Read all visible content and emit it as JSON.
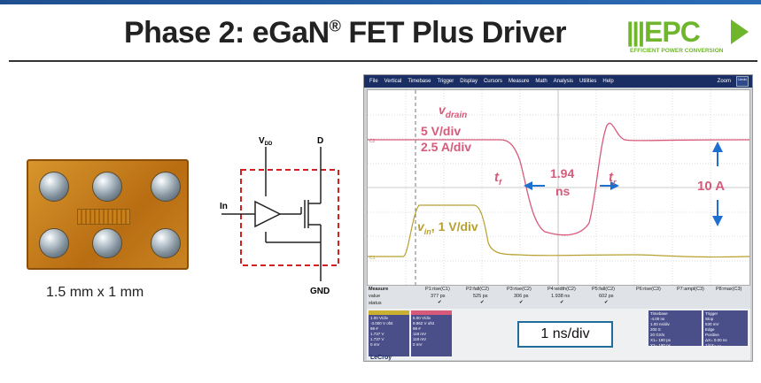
{
  "slide": {
    "title_main": "Phase 2: eGaN",
    "title_sup": "®",
    "title_rest": " FET Plus Driver"
  },
  "logo": {
    "text": "EPC",
    "sub": "EFFICIENT POWER CONVERSION"
  },
  "chip": {
    "label": "1.5 mm x 1 mm"
  },
  "schematic": {
    "vdd": "V",
    "vdd_sub": "DD",
    "d": "D",
    "in": "In",
    "gnd": "GND"
  },
  "scope": {
    "menu": [
      "File",
      "Vertical",
      "Timebase",
      "Trigger",
      "Display",
      "Cursors",
      "Measure",
      "Math",
      "Analysis",
      "Utilities",
      "Help"
    ],
    "zoom": "Zoom",
    "undo": "Undo",
    "annotations": {
      "vdrain": "v",
      "vdrain_sub": "drain",
      "v5div": "5 V/div",
      "a25div": "2.5 A/div",
      "tf": "t",
      "tf_sub": "f",
      "tr": "t",
      "tr_sub": "r",
      "t194": "1.94",
      "ns": "ns",
      "i10a": "10 A",
      "vin": "v",
      "vin_sub": "in",
      "v1div": ", 1 V/div"
    },
    "measure": {
      "head": "Measure",
      "row_value": "value",
      "row_status": "status",
      "cols": [
        {
          "name": "P1:rise(C1)",
          "value": "377 ps"
        },
        {
          "name": "P2:fall(C2)",
          "value": "525 ps"
        },
        {
          "name": "P3:rise(C2)",
          "value": "306 ps"
        },
        {
          "name": "P4:width(C2)",
          "value": "1.938 ns"
        },
        {
          "name": "P5:fall(C2)",
          "value": "602 ps"
        },
        {
          "name": "P6:rise(C3)",
          "value": ""
        },
        {
          "name": "P7:ampl(C3)",
          "value": ""
        },
        {
          "name": "P8:max(C3)",
          "value": ""
        }
      ]
    },
    "ch1": [
      "1.00 V/div",
      "-3.000 V ofst",
      "99 #",
      "1.737 V",
      "1.737 V",
      "0 mV"
    ],
    "ch2": [
      "5.00 V/div",
      "9.862 V ofst",
      "99 #",
      "118 mV",
      "118 mV",
      "0 mV"
    ],
    "nsdiv": "1 ns/div",
    "timebase": [
      "Timebase",
      "-4.00 ns",
      "1.00 ns/div",
      "200 S",
      "20 GS/s",
      "X1=",
      "190 ps",
      "X2=",
      "190 ps"
    ],
    "trigger": [
      "Trigger",
      "Stop",
      "530 mV",
      "Edge",
      "Positive",
      "ΔX=",
      "0.00 ns",
      "1/ΔX=",
      "---"
    ],
    "brand": "LeCroy"
  }
}
